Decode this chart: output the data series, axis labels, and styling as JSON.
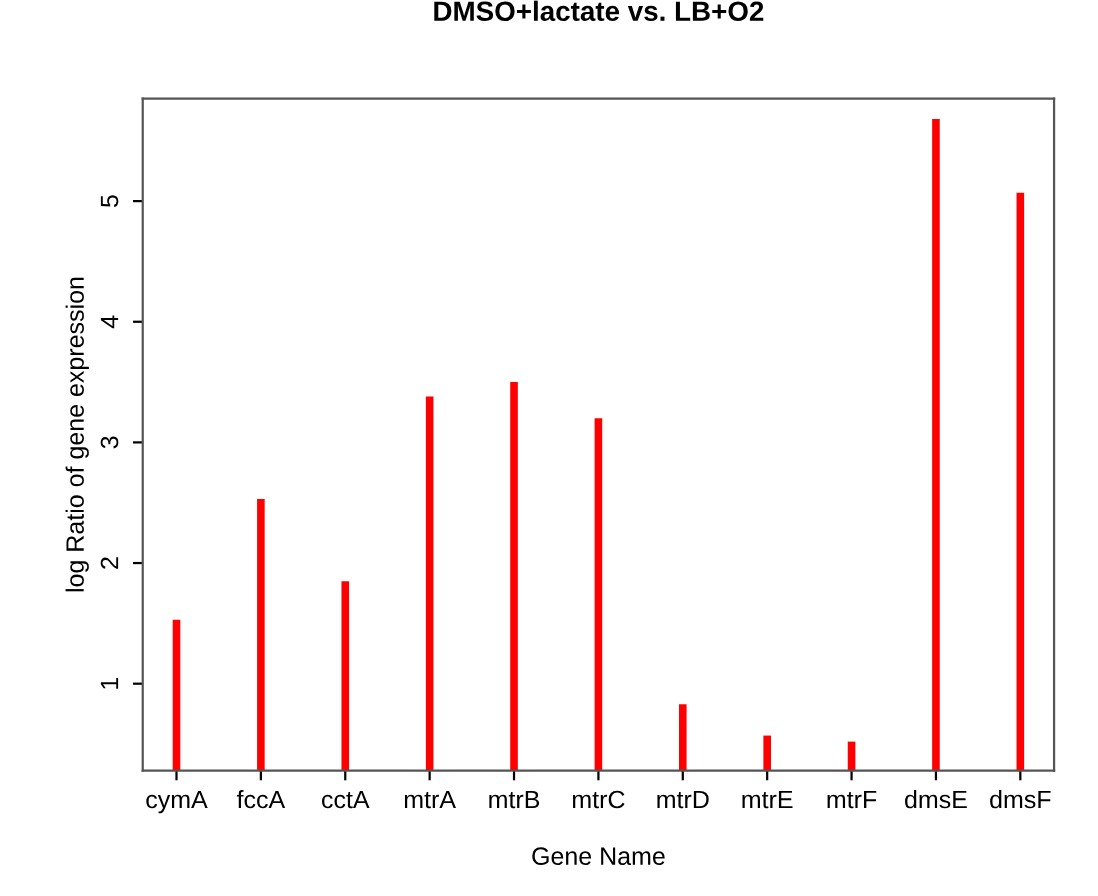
{
  "chart_data": {
    "type": "bar",
    "title": "DMSO+lactate vs. LB+O2",
    "xlabel": "Gene Name",
    "ylabel": "log Ratio of gene expression",
    "categories": [
      "cymA",
      "fccA",
      "cctA",
      "mtrA",
      "mtrB",
      "mtrC",
      "mtrD",
      "mtrE",
      "mtrF",
      "dmsE",
      "dmsF"
    ],
    "values": [
      1.53,
      2.53,
      1.85,
      3.38,
      3.5,
      3.2,
      0.83,
      0.57,
      0.52,
      5.68,
      5.07
    ],
    "color": "#ff0000",
    "ylim": [
      0.28,
      5.85
    ],
    "yticks": [
      1,
      2,
      3,
      4,
      5
    ],
    "grid": false,
    "legend": false
  }
}
